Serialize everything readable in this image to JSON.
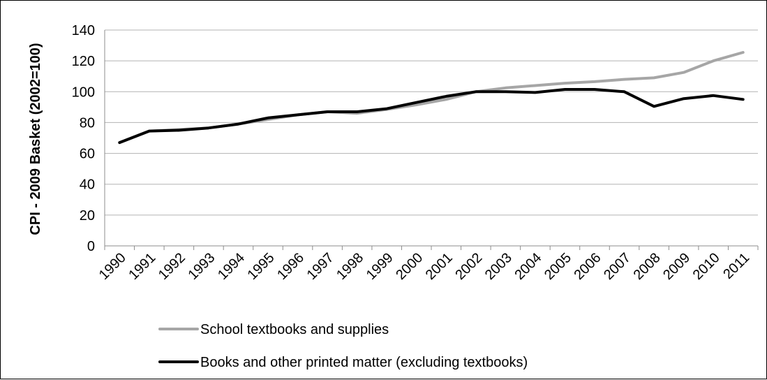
{
  "chart_data": {
    "type": "line",
    "title": "",
    "xlabel": "",
    "ylabel": "CPI - 2009 Basket (2002=100)",
    "ylim": [
      0,
      140
    ],
    "yticks": [
      0,
      20,
      40,
      60,
      80,
      100,
      120,
      140
    ],
    "grid": "horizontal",
    "legend_position": "bottom",
    "categories": [
      "1990",
      "1991",
      "1992",
      "1993",
      "1994",
      "1995",
      "1996",
      "1997",
      "1998",
      "1999",
      "2000",
      "2001",
      "2002",
      "2003",
      "2004",
      "2005",
      "2006",
      "2007",
      "2008",
      "2009",
      "2010",
      "2011"
    ],
    "series": [
      {
        "name": "School textbooks and supplies",
        "color": "#a6a6a6",
        "values": [
          67,
          74.5,
          75.5,
          76.5,
          79,
          82,
          85,
          87,
          86,
          88.5,
          91.5,
          95,
          100,
          102.5,
          104,
          105.5,
          106.5,
          108,
          109,
          112.5,
          120,
          125.5
        ]
      },
      {
        "name": "Books and other printed matter (excluding textbooks)",
        "color": "#000000",
        "values": [
          67,
          74.5,
          75,
          76.5,
          79,
          83,
          85,
          87,
          87,
          89,
          93,
          97,
          100,
          100,
          99.5,
          101.5,
          101.5,
          100,
          90.5,
          95.5,
          97.5,
          95
        ]
      }
    ]
  }
}
